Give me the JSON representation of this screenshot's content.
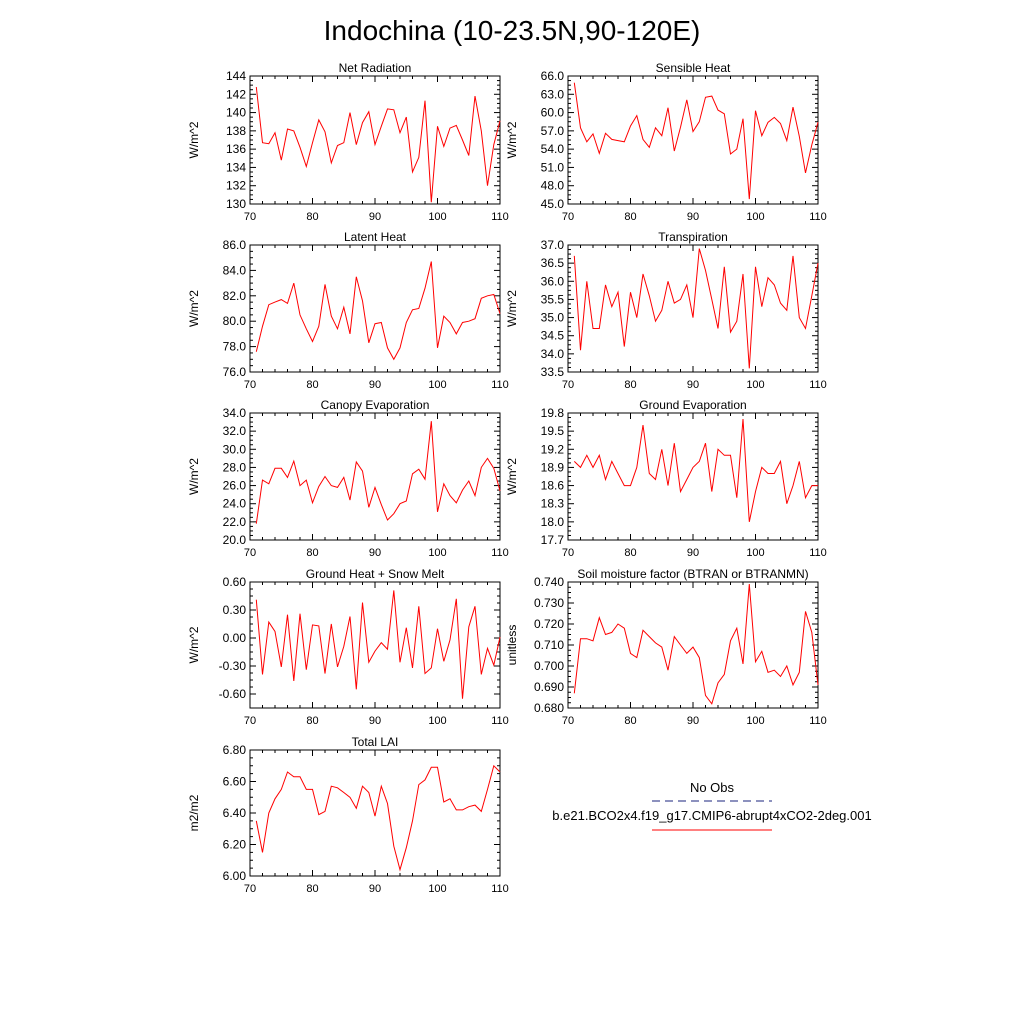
{
  "title": "Indochina (10-23.5N,90-120E)",
  "legend": {
    "obs_label": "No Obs",
    "model_label": "b.e21.BCO2x4.f19_g17.CMIP6-abrupt4xCO2-2deg.001",
    "obs_color": "#1a237e",
    "model_color": "#ff0000"
  },
  "chart_data": [
    {
      "type": "line",
      "title": "Net Radiation",
      "ylabel": "W/m^2",
      "xlabel": "",
      "xlim": [
        70,
        110
      ],
      "ylim": [
        130,
        144
      ],
      "xticks": [
        "70",
        "80",
        "90",
        "100",
        "110"
      ],
      "yticks": [
        "130",
        "132",
        "134",
        "136",
        "138",
        "140",
        "142",
        "144"
      ],
      "x_start": 71,
      "series": [
        {
          "name": "b.e21.BCO2x4.f19_g17.CMIP6-abrupt4xCO2-2deg.001",
          "color": "#ff0000",
          "values": [
            142.8,
            136.7,
            136.6,
            137.8,
            134.8,
            138.2,
            138.0,
            136.2,
            134.1,
            136.7,
            139.2,
            137.9,
            134.5,
            136.4,
            136.7,
            140.0,
            136.5,
            138.9,
            140.1,
            136.5,
            138.5,
            140.4,
            140.3,
            137.8,
            139.5,
            133.5,
            135.1,
            141.3,
            130.2,
            138.5,
            136.3,
            138.3,
            138.6,
            137.0,
            135.3,
            141.8,
            138.0,
            132.0,
            136.5,
            139.1
          ]
        }
      ]
    },
    {
      "type": "line",
      "title": "Sensible Heat",
      "ylabel": "W/m^2",
      "xlabel": "",
      "xlim": [
        70,
        110
      ],
      "ylim": [
        45,
        66
      ],
      "xticks": [
        "70",
        "80",
        "90",
        "100",
        "110"
      ],
      "yticks": [
        "45.0",
        "48.0",
        "51.0",
        "54.0",
        "57.0",
        "60.0",
        "63.0",
        "66.0"
      ],
      "x_start": 71,
      "series": [
        {
          "name": "b.e21.BCO2x4.f19_g17.CMIP6-abrupt4xCO2-2deg.001",
          "color": "#ff0000",
          "values": [
            64.9,
            57.5,
            55.2,
            56.5,
            53.3,
            56.6,
            55.6,
            55.4,
            55.2,
            57.8,
            59.5,
            55.6,
            54.3,
            57.5,
            56.2,
            60.8,
            53.7,
            57.6,
            62.1,
            56.9,
            58.5,
            62.5,
            62.7,
            60.4,
            59.8,
            53.2,
            54.0,
            59.0,
            45.8,
            60.3,
            56.2,
            58.4,
            59.2,
            58.2,
            55.4,
            60.9,
            56.1,
            50.1,
            54.7,
            58.4
          ]
        }
      ]
    },
    {
      "type": "line",
      "title": "Latent Heat",
      "ylabel": "W/m^2",
      "xlabel": "",
      "xlim": [
        70,
        110
      ],
      "ylim": [
        76,
        86
      ],
      "xticks": [
        "70",
        "80",
        "90",
        "100",
        "110"
      ],
      "yticks": [
        "76.0",
        "78.0",
        "80.0",
        "82.0",
        "84.0",
        "86.0"
      ],
      "x_start": 71,
      "series": [
        {
          "name": "b.e21.BCO2x4.f19_g17.CMIP6-abrupt4xCO2-2deg.001",
          "color": "#ff0000",
          "values": [
            77.6,
            79.6,
            81.3,
            81.5,
            81.7,
            81.4,
            83.0,
            80.5,
            79.4,
            78.4,
            79.6,
            82.9,
            80.4,
            79.4,
            81.1,
            79.0,
            83.5,
            81.6,
            78.3,
            79.8,
            79.9,
            77.9,
            77.0,
            77.9,
            79.9,
            80.9,
            81.0,
            82.6,
            84.7,
            77.9,
            80.4,
            79.9,
            79.0,
            79.9,
            80.0,
            80.2,
            81.8,
            82.0,
            82.1,
            80.6
          ]
        }
      ]
    },
    {
      "type": "line",
      "title": "Transpiration",
      "ylabel": "W/m^2",
      "xlabel": "",
      "xlim": [
        70,
        110
      ],
      "ylim": [
        33.5,
        37.0
      ],
      "xticks": [
        "70",
        "80",
        "90",
        "100",
        "110"
      ],
      "yticks": [
        "33.5",
        "34.0",
        "34.5",
        "35.0",
        "35.5",
        "36.0",
        "36.5",
        "37.0"
      ],
      "x_start": 71,
      "series": [
        {
          "name": "b.e21.BCO2x4.f19_g17.CMIP6-abrupt4xCO2-2deg.001",
          "color": "#ff0000",
          "values": [
            36.7,
            34.1,
            36.0,
            34.7,
            34.7,
            35.9,
            35.3,
            35.7,
            34.2,
            35.7,
            35.0,
            36.2,
            35.6,
            34.9,
            35.2,
            36.0,
            35.4,
            35.5,
            35.9,
            35.0,
            36.9,
            36.3,
            35.5,
            34.7,
            36.4,
            34.6,
            34.9,
            36.2,
            33.6,
            36.4,
            35.3,
            36.1,
            35.9,
            35.4,
            35.2,
            36.7,
            35.0,
            34.7,
            35.6,
            36.5
          ]
        }
      ]
    },
    {
      "type": "line",
      "title": "Canopy Evaporation",
      "ylabel": "W/m^2",
      "xlabel": "",
      "xlim": [
        70,
        110
      ],
      "ylim": [
        20,
        34
      ],
      "xticks": [
        "70",
        "80",
        "90",
        "100",
        "110"
      ],
      "yticks": [
        "20.0",
        "22.0",
        "24.0",
        "26.0",
        "28.0",
        "30.0",
        "32.0",
        "34.0"
      ],
      "x_start": 71,
      "series": [
        {
          "name": "b.e21.BCO2x4.f19_g17.CMIP6-abrupt4xCO2-2deg.001",
          "color": "#ff0000",
          "values": [
            21.8,
            26.6,
            26.2,
            27.9,
            27.9,
            26.9,
            28.7,
            26.0,
            26.6,
            24.1,
            25.9,
            27.0,
            26.0,
            25.8,
            26.9,
            24.4,
            28.6,
            27.6,
            23.6,
            25.8,
            23.9,
            22.2,
            22.9,
            24.0,
            24.3,
            27.3,
            27.8,
            26.7,
            33.1,
            23.1,
            26.2,
            24.9,
            24.1,
            25.5,
            26.5,
            24.9,
            28.0,
            29.0,
            27.9,
            25.4
          ]
        }
      ]
    },
    {
      "type": "line",
      "title": "Ground Evaporation",
      "ylabel": "W/m^2",
      "xlabel": "",
      "xlim": [
        70,
        110
      ],
      "ylim": [
        17.7,
        19.8
      ],
      "xticks": [
        "70",
        "80",
        "90",
        "100",
        "110"
      ],
      "yticks": [
        "17.7",
        "18.0",
        "18.3",
        "18.6",
        "18.9",
        "19.2",
        "19.5",
        "19.8"
      ],
      "x_start": 71,
      "series": [
        {
          "name": "b.e21.BCO2x4.f19_g17.CMIP6-abrupt4xCO2-2deg.001",
          "color": "#ff0000",
          "values": [
            19.0,
            18.9,
            19.1,
            18.9,
            19.1,
            18.7,
            19.0,
            18.8,
            18.6,
            18.6,
            18.9,
            19.6,
            18.8,
            18.7,
            19.2,
            18.6,
            19.3,
            18.5,
            18.7,
            18.9,
            19.0,
            19.3,
            18.5,
            19.2,
            19.1,
            19.1,
            18.4,
            19.7,
            18.0,
            18.5,
            18.9,
            18.8,
            18.8,
            19.0,
            18.3,
            18.6,
            19.0,
            18.4,
            18.6,
            18.6
          ]
        }
      ]
    },
    {
      "type": "line",
      "title": "Ground Heat + Snow Melt",
      "ylabel": "W/m^2",
      "xlabel": "",
      "xlim": [
        70,
        110
      ],
      "ylim": [
        -0.75,
        0.6
      ],
      "xticks": [
        "70",
        "80",
        "90",
        "100",
        "110"
      ],
      "yticks": [
        "-0.60",
        "-0.30",
        "0.00",
        "0.30",
        "0.60"
      ],
      "ytick_values": [
        -0.6,
        -0.3,
        0.0,
        0.3,
        0.6
      ],
      "x_start": 71,
      "series": [
        {
          "name": "b.e21.BCO2x4.f19_g17.CMIP6-abrupt4xCO2-2deg.001",
          "color": "#ff0000",
          "values": [
            0.41,
            -0.39,
            0.17,
            0.07,
            -0.31,
            0.25,
            -0.46,
            0.26,
            -0.34,
            0.14,
            0.13,
            -0.38,
            0.15,
            -0.31,
            -0.09,
            0.23,
            -0.55,
            0.38,
            -0.26,
            -0.14,
            -0.05,
            -0.12,
            0.51,
            -0.26,
            0.11,
            -0.32,
            0.34,
            -0.38,
            -0.32,
            0.1,
            -0.25,
            -0.02,
            0.42,
            -0.65,
            0.12,
            0.34,
            -0.39,
            -0.11,
            -0.29,
            0.01
          ]
        }
      ]
    },
    {
      "type": "line",
      "title": "Soil moisture factor (BTRAN or BTRANMN)",
      "ylabel": "unitless",
      "xlabel": "",
      "xlim": [
        70,
        110
      ],
      "ylim": [
        0.68,
        0.74
      ],
      "xticks": [
        "70",
        "80",
        "90",
        "100",
        "110"
      ],
      "yticks": [
        "0.680",
        "0.690",
        "0.700",
        "0.710",
        "0.720",
        "0.730",
        "0.740"
      ],
      "x_start": 71,
      "series": [
        {
          "name": "b.e21.BCO2x4.f19_g17.CMIP6-abrupt4xCO2-2deg.001",
          "color": "#ff0000",
          "values": [
            0.687,
            0.713,
            0.713,
            0.712,
            0.723,
            0.715,
            0.716,
            0.72,
            0.718,
            0.706,
            0.704,
            0.717,
            0.714,
            0.711,
            0.709,
            0.698,
            0.714,
            0.71,
            0.706,
            0.709,
            0.704,
            0.686,
            0.682,
            0.692,
            0.696,
            0.712,
            0.718,
            0.701,
            0.739,
            0.702,
            0.707,
            0.697,
            0.698,
            0.695,
            0.7,
            0.691,
            0.697,
            0.726,
            0.716,
            0.691
          ]
        }
      ]
    },
    {
      "type": "line",
      "title": "Total LAI",
      "ylabel": "m2/m2",
      "xlabel": "",
      "xlim": [
        70,
        110
      ],
      "ylim": [
        6.0,
        6.8
      ],
      "xticks": [
        "70",
        "80",
        "90",
        "100",
        "110"
      ],
      "yticks": [
        "6.00",
        "6.20",
        "6.40",
        "6.60",
        "6.80"
      ],
      "x_start": 71,
      "series": [
        {
          "name": "b.e21.BCO2x4.f19_g17.CMIP6-abrupt4xCO2-2deg.001",
          "color": "#ff0000",
          "values": [
            6.35,
            6.15,
            6.4,
            6.49,
            6.55,
            6.66,
            6.63,
            6.63,
            6.55,
            6.55,
            6.39,
            6.41,
            6.57,
            6.56,
            6.53,
            6.5,
            6.43,
            6.57,
            6.53,
            6.38,
            6.57,
            6.46,
            6.19,
            6.04,
            6.18,
            6.35,
            6.58,
            6.61,
            6.69,
            6.69,
            6.47,
            6.49,
            6.42,
            6.42,
            6.44,
            6.45,
            6.41,
            6.55,
            6.7,
            6.66
          ]
        }
      ]
    }
  ]
}
